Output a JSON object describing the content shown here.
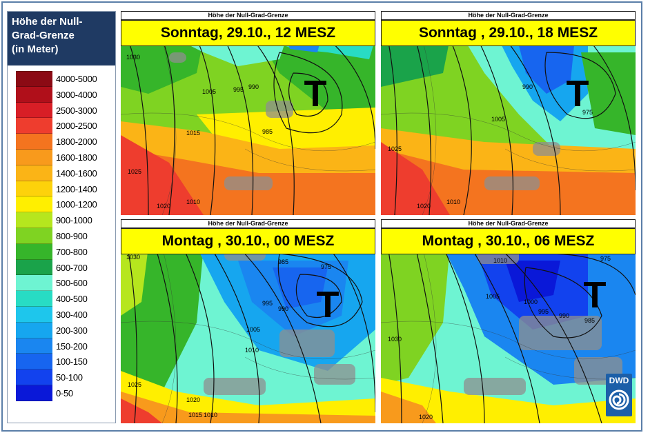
{
  "legend": {
    "title_lines": [
      "Höhe der Null-",
      "Grad-Grenze",
      "(in Meter)"
    ],
    "classes": [
      {
        "label": "4000-5000",
        "color": "#8b0a14"
      },
      {
        "label": "3000-4000",
        "color": "#b00f1a"
      },
      {
        "label": "2500-3000",
        "color": "#d81e26"
      },
      {
        "label": "2000-2500",
        "color": "#ee3d2e"
      },
      {
        "label": "1800-2000",
        "color": "#f4741f"
      },
      {
        "label": "1600-1800",
        "color": "#f89a1c"
      },
      {
        "label": "1400-1600",
        "color": "#fbb416"
      },
      {
        "label": "1200-1400",
        "color": "#fdd20b"
      },
      {
        "label": "1000-1200",
        "color": "#ffef00"
      },
      {
        "label": "900-1000",
        "color": "#b6e61e"
      },
      {
        "label": "800-900",
        "color": "#7fd322"
      },
      {
        "label": "700-800",
        "color": "#36b52a"
      },
      {
        "label": "600-700",
        "color": "#1aa34a"
      },
      {
        "label": "500-600",
        "color": "#6ef4d2"
      },
      {
        "label": "400-500",
        "color": "#28dcc4"
      },
      {
        "label": "300-400",
        "color": "#1ec6ec"
      },
      {
        "label": "200-300",
        "color": "#16a6ef"
      },
      {
        "label": "150-200",
        "color": "#1a86f0"
      },
      {
        "label": "100-150",
        "color": "#1765ef"
      },
      {
        "label": "50-100",
        "color": "#1242ee"
      },
      {
        "label": "0-50",
        "color": "#0a18d8"
      }
    ]
  },
  "panels": [
    {
      "strip": "Höhe der Null-Grad-Grenze",
      "title": "Sonntag, 29.10., 12 MESZ",
      "low_symbol": "T",
      "isobar_labels": [
        "1030",
        "1005",
        "995",
        "990",
        "985",
        "1015",
        "1025",
        "1020",
        "1010"
      ]
    },
    {
      "strip": "Höhe der Null-Grad-Grenze",
      "title": "Sonntag , 29.10., 18 MESZ",
      "low_symbol": "T",
      "isobar_labels": [
        "990",
        "1005",
        "975",
        "1025",
        "1020",
        "1010"
      ]
    },
    {
      "strip": "Höhe der Null-Grad-Grenze",
      "title": "Montag , 30.10., 00 MESZ",
      "low_symbol": "T",
      "isobar_labels": [
        "1030",
        "985",
        "975",
        "995",
        "990",
        "1005",
        "1010",
        "1025",
        "1020",
        "1015",
        "1010"
      ]
    },
    {
      "strip": "Höhe der Null-Grad-Grenze",
      "title": "Montag , 30.10., 06 MESZ",
      "low_symbol": "T",
      "isobar_labels": [
        "1010",
        "975",
        "1005",
        "1000",
        "995",
        "990",
        "985",
        "1030",
        "1020"
      ]
    }
  ],
  "logo": {
    "text": "DWD"
  }
}
